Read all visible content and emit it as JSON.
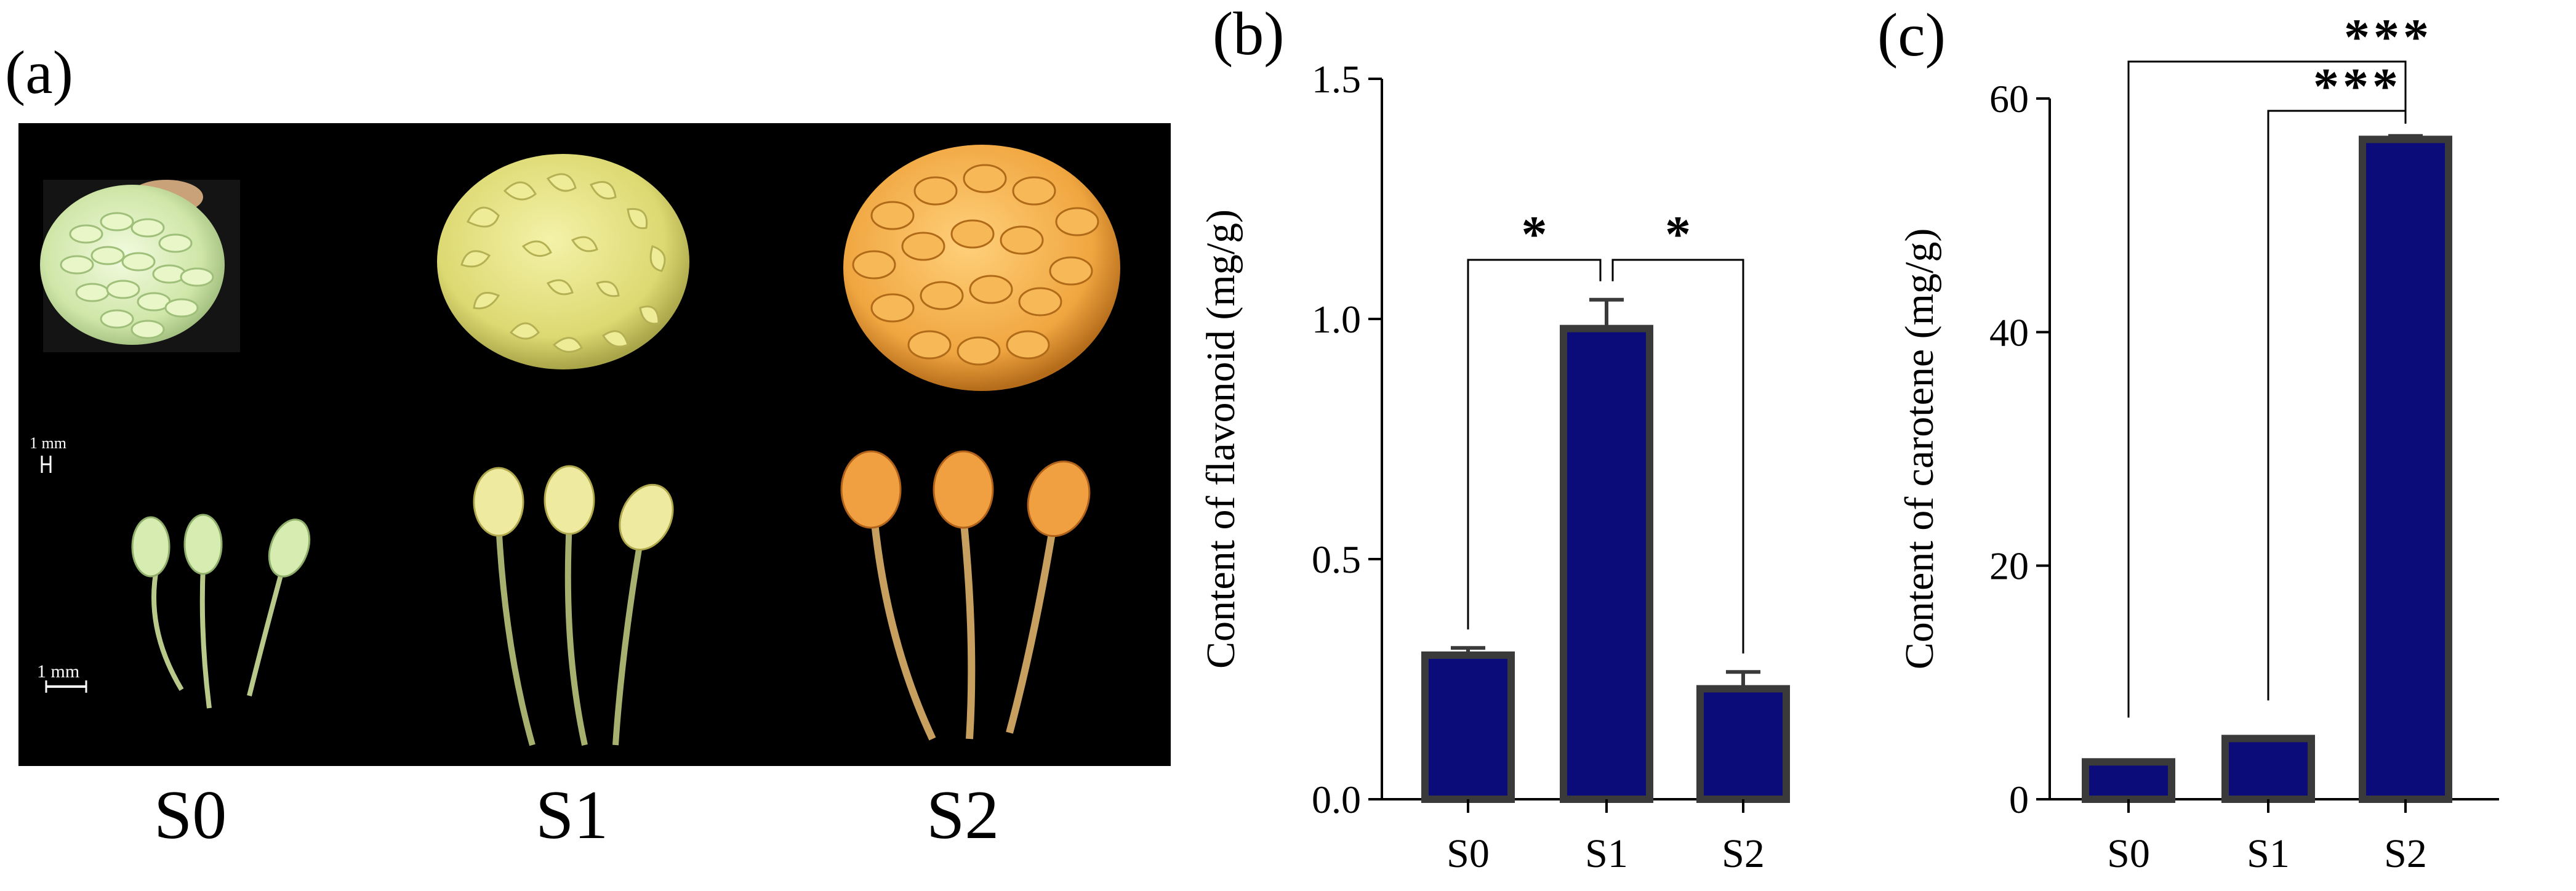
{
  "figure": {
    "panel_a_label": "(a)",
    "panel_b_label": "(b)",
    "panel_c_label": "(c)",
    "stages": [
      "S0",
      "S1",
      "S2"
    ],
    "scale_bar_top": "1 mm",
    "scale_bar_bottom": "1 mm"
  },
  "colors": {
    "bar_fill": "#0b0b7a",
    "bar_edge": "#3a3a3a",
    "s0_flower": "#d8ecb6",
    "s1_flower": "#e6e48a",
    "s2_flower": "#f0a640"
  },
  "chart_data": [
    {
      "type": "bar",
      "panel": "(b)",
      "categories": [
        "S0",
        "S1",
        "S2"
      ],
      "values": [
        0.3,
        0.98,
        0.23
      ],
      "errors": [
        0.015,
        0.06,
        0.035
      ],
      "ylabel": "Content of flavonoid (mg/g)",
      "xlabel": "",
      "ylim": [
        0,
        1.5
      ],
      "yticks": [
        "0.0",
        "0.5",
        "1.0",
        "1.5"
      ],
      "significance": [
        {
          "pair": [
            "S0",
            "S1"
          ],
          "label": "*"
        },
        {
          "pair": [
            "S1",
            "S2"
          ],
          "label": "*"
        }
      ]
    },
    {
      "type": "bar",
      "panel": "(c)",
      "categories": [
        "S0",
        "S1",
        "S2"
      ],
      "values": [
        3.2,
        5.2,
        56.5
      ],
      "errors": [
        0.1,
        0.1,
        0.3
      ],
      "ylabel": "Content of carotene (mg/g)",
      "xlabel": "",
      "ylim": [
        0,
        60
      ],
      "yticks": [
        "0",
        "20",
        "40",
        "60"
      ],
      "significance": [
        {
          "pair": [
            "S0",
            "S2"
          ],
          "label": "***"
        },
        {
          "pair": [
            "S1",
            "S2"
          ],
          "label": "***"
        }
      ]
    }
  ]
}
